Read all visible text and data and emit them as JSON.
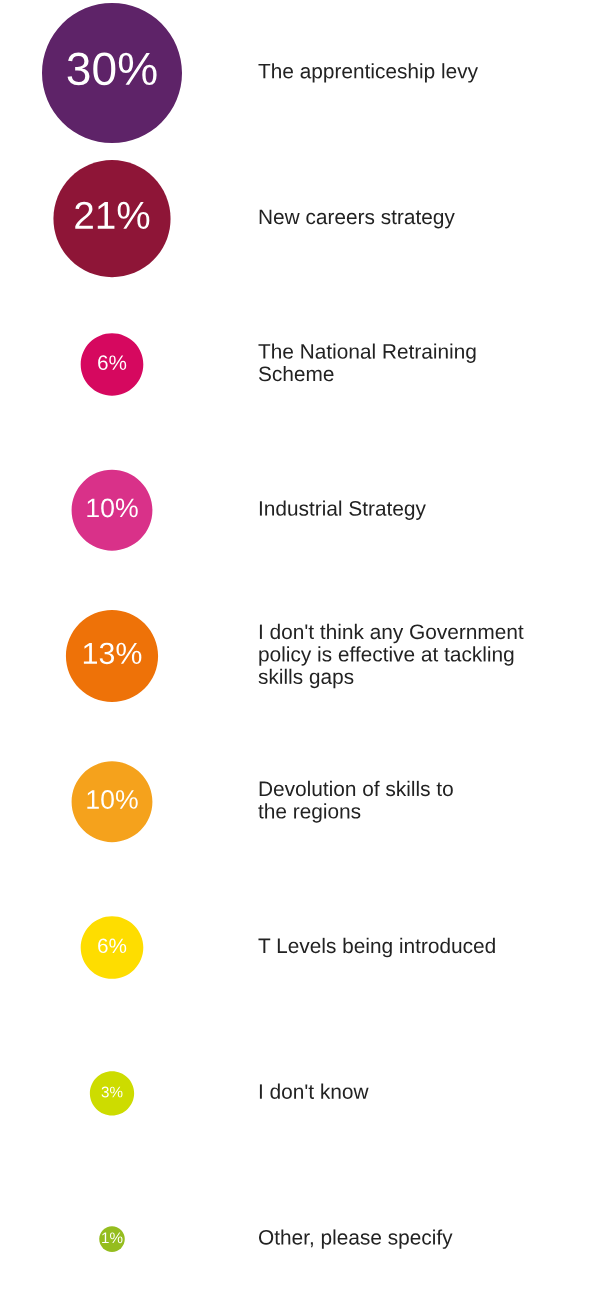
{
  "chart_data": {
    "type": "other",
    "categories": [
      "The apprenticeship levy",
      "New careers strategy",
      "The National Retraining\nScheme",
      "Industrial Strategy",
      "I don't think any Government\npolicy is effective at tackling\nskills gaps",
      "Devolution of skills to\nthe regions",
      "T Levels being introduced",
      "I don't know",
      "Other, please specify"
    ],
    "values": [
      30,
      21,
      6,
      10,
      13,
      10,
      6,
      3,
      1
    ],
    "value_labels": [
      "30%",
      "21%",
      "6%",
      "10%",
      "13%",
      "10%",
      "6%",
      "3%",
      "1%"
    ],
    "colors": [
      "#5e2368",
      "#8e1537",
      "#d6085f",
      "#d93189",
      "#ee7208",
      "#f5a21c",
      "#fedd00",
      "#cddc00",
      "#95bd1f"
    ]
  }
}
